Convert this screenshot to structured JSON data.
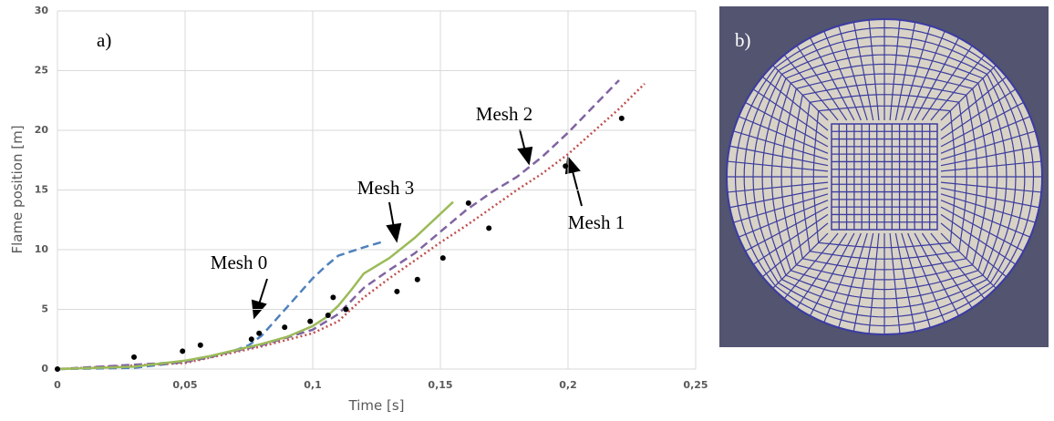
{
  "chart_data": {
    "type": "line",
    "x_label": "Time [s]",
    "y_label": "Flame position [m]",
    "xlim": [
      0,
      0.25
    ],
    "ylim": [
      0,
      30
    ],
    "xticks": [
      0,
      {
        "value": 0.05,
        "label": "0,05"
      },
      {
        "value": 0.1,
        "label": "0,1"
      },
      {
        "value": 0.15,
        "label": "0,15"
      },
      {
        "value": 0.2,
        "label": "0,2"
      },
      {
        "value": 0.25,
        "label": "0,25"
      }
    ],
    "yticks": [
      0,
      5,
      10,
      15,
      20,
      25,
      30
    ],
    "grid": true,
    "panel_label": "a)",
    "series": [
      {
        "name": "Mesh 0",
        "color": "#4f81bd",
        "dash": "dashed",
        "x": [
          0,
          0.03,
          0.05,
          0.06,
          0.07,
          0.075,
          0.08,
          0.085,
          0.09,
          0.095,
          0.1,
          0.105,
          0.11,
          0.12,
          0.128
        ],
        "values": [
          0,
          0.1,
          0.6,
          1.0,
          1.6,
          2.0,
          2.8,
          4.0,
          5.2,
          6.4,
          7.6,
          8.6,
          9.5,
          10.2,
          10.7
        ]
      },
      {
        "name": "Mesh 1",
        "color": "#c0504d",
        "dash": "dotted",
        "x": [
          0,
          0.05,
          0.08,
          0.1,
          0.11,
          0.115,
          0.12,
          0.13,
          0.14,
          0.15,
          0.16,
          0.17,
          0.18,
          0.19,
          0.2,
          0.21,
          0.22,
          0.23
        ],
        "values": [
          0,
          0.5,
          1.9,
          3.0,
          4.0,
          5.0,
          6.0,
          7.6,
          9.1,
          10.6,
          12.0,
          13.5,
          15.0,
          16.4,
          18.0,
          19.9,
          21.8,
          23.9
        ]
      },
      {
        "name": "Mesh 2",
        "color": "#8064a2",
        "dash": "dashed",
        "x": [
          0,
          0.05,
          0.08,
          0.1,
          0.11,
          0.12,
          0.13,
          0.14,
          0.15,
          0.16,
          0.17,
          0.18,
          0.19,
          0.2,
          0.21,
          0.22
        ],
        "values": [
          0,
          0.6,
          2.0,
          3.3,
          4.6,
          6.8,
          8.3,
          9.7,
          11.5,
          13.3,
          14.8,
          16.1,
          17.8,
          19.8,
          22.0,
          24.2
        ]
      },
      {
        "name": "Mesh 3",
        "color": "#9bbb59",
        "dash": "solid",
        "x": [
          0,
          0.03,
          0.05,
          0.06,
          0.07,
          0.08,
          0.09,
          0.1,
          0.105,
          0.11,
          0.115,
          0.12,
          0.13,
          0.14,
          0.15,
          0.155
        ],
        "values": [
          0,
          0.2,
          0.7,
          1.1,
          1.6,
          2.1,
          2.7,
          3.6,
          4.3,
          5.3,
          6.6,
          8.0,
          9.3,
          11.0,
          13.0,
          14.0
        ]
      },
      {
        "color": "#000000",
        "marker": "dot",
        "x": [
          0,
          0.03,
          0.049,
          0.056,
          0.076,
          0.079,
          0.089,
          0.099,
          0.106,
          0.108,
          0.113,
          0.133,
          0.141,
          0.151,
          0.161,
          0.169,
          0.199,
          0.221
        ],
        "values": [
          0,
          1.0,
          1.5,
          2.0,
          2.5,
          3.0,
          3.5,
          4.0,
          4.5,
          6.0,
          5.0,
          6.5,
          7.5,
          9.3,
          13.9,
          11.8,
          17.0,
          21.0
        ]
      }
    ]
  },
  "image": {
    "label": "b)"
  }
}
